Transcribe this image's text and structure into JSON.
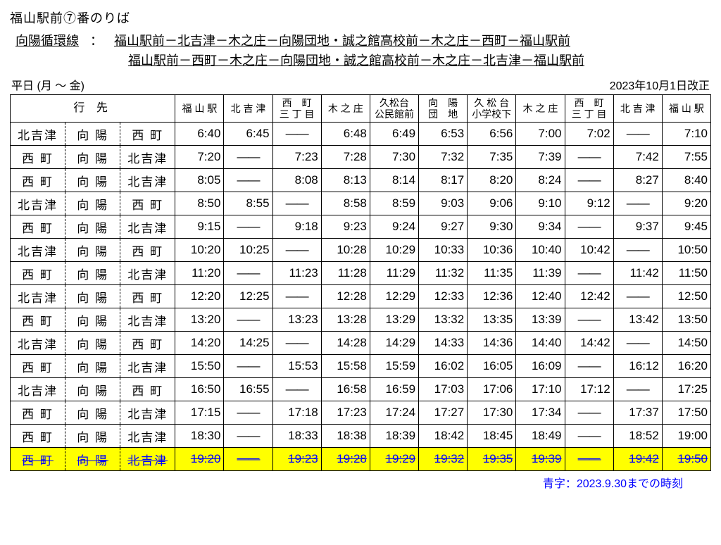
{
  "header": {
    "stop_title": "福山駅前⑦番のりば",
    "route_name": "向陽循環線",
    "sep": "：",
    "route_path_1": "福山駅前－北吉津－木之庄－向陽団地・誠之館高校前－木之庄－西町－福山駅前",
    "route_path_2": "福山駅前－西町－木之庄－向陽団地・誠之館高校前－木之庄－北吉津－福山駅前",
    "day_label": "平日 (月 ～ 金)",
    "revision": "2023年10月1日改正"
  },
  "columns": [
    "行 先",
    "福 山 駅",
    "北 吉 津",
    "西　町\n三 丁 目",
    "木 之 庄",
    "久松台\n公民館前",
    "向　陽\n団　地",
    "久 松 台\n小学校下",
    "木 之 庄",
    "西　町\n三 丁 目",
    "北 吉 津",
    "福 山 駅"
  ],
  "dash": "――",
  "rows": [
    {
      "dest": [
        "北吉津",
        "向 陽",
        "西 町"
      ],
      "c": [
        "6:40",
        "6:45",
        "",
        "6:48",
        "6:49",
        "6:53",
        "6:56",
        "7:00",
        "7:02",
        "",
        "7:10"
      ]
    },
    {
      "dest": [
        "西 町",
        "向 陽",
        "北吉津"
      ],
      "c": [
        "7:20",
        "",
        "7:23",
        "7:28",
        "7:30",
        "7:32",
        "7:35",
        "7:39",
        "",
        "7:42",
        "7:55"
      ]
    },
    {
      "dest": [
        "西 町",
        "向 陽",
        "北吉津"
      ],
      "c": [
        "8:05",
        "",
        "8:08",
        "8:13",
        "8:14",
        "8:17",
        "8:20",
        "8:24",
        "",
        "8:27",
        "8:40"
      ]
    },
    {
      "dest": [
        "北吉津",
        "向 陽",
        "西 町"
      ],
      "c": [
        "8:50",
        "8:55",
        "",
        "8:58",
        "8:59",
        "9:03",
        "9:06",
        "9:10",
        "9:12",
        "",
        "9:20"
      ]
    },
    {
      "dest": [
        "西 町",
        "向 陽",
        "北吉津"
      ],
      "c": [
        "9:15",
        "",
        "9:18",
        "9:23",
        "9:24",
        "9:27",
        "9:30",
        "9:34",
        "",
        "9:37",
        "9:45"
      ]
    },
    {
      "dest": [
        "北吉津",
        "向 陽",
        "西 町"
      ],
      "c": [
        "10:20",
        "10:25",
        "",
        "10:28",
        "10:29",
        "10:33",
        "10:36",
        "10:40",
        "10:42",
        "",
        "10:50"
      ]
    },
    {
      "dest": [
        "西 町",
        "向 陽",
        "北吉津"
      ],
      "c": [
        "11:20",
        "",
        "11:23",
        "11:28",
        "11:29",
        "11:32",
        "11:35",
        "11:39",
        "",
        "11:42",
        "11:50"
      ]
    },
    {
      "dest": [
        "北吉津",
        "向 陽",
        "西 町"
      ],
      "c": [
        "12:20",
        "12:25",
        "",
        "12:28",
        "12:29",
        "12:33",
        "12:36",
        "12:40",
        "12:42",
        "",
        "12:50"
      ]
    },
    {
      "dest": [
        "西 町",
        "向 陽",
        "北吉津"
      ],
      "c": [
        "13:20",
        "",
        "13:23",
        "13:28",
        "13:29",
        "13:32",
        "13:35",
        "13:39",
        "",
        "13:42",
        "13:50"
      ]
    },
    {
      "dest": [
        "北吉津",
        "向 陽",
        "西 町"
      ],
      "c": [
        "14:20",
        "14:25",
        "",
        "14:28",
        "14:29",
        "14:33",
        "14:36",
        "14:40",
        "14:42",
        "",
        "14:50"
      ]
    },
    {
      "dest": [
        "西 町",
        "向 陽",
        "北吉津"
      ],
      "c": [
        "15:50",
        "",
        "15:53",
        "15:58",
        "15:59",
        "16:02",
        "16:05",
        "16:09",
        "",
        "16:12",
        "16:20"
      ]
    },
    {
      "dest": [
        "北吉津",
        "向 陽",
        "西 町"
      ],
      "c": [
        "16:50",
        "16:55",
        "",
        "16:58",
        "16:59",
        "17:03",
        "17:06",
        "17:10",
        "17:12",
        "",
        "17:25"
      ]
    },
    {
      "dest": [
        "西 町",
        "向 陽",
        "北吉津"
      ],
      "c": [
        "17:15",
        "",
        "17:18",
        "17:23",
        "17:24",
        "17:27",
        "17:30",
        "17:34",
        "",
        "17:37",
        "17:50"
      ]
    },
    {
      "dest": [
        "西 町",
        "向 陽",
        "北吉津"
      ],
      "c": [
        "18:30",
        "",
        "18:33",
        "18:38",
        "18:39",
        "18:42",
        "18:45",
        "18:49",
        "",
        "18:52",
        "19:00"
      ]
    },
    {
      "dest": [
        "西 町",
        "向 陽",
        "北吉津"
      ],
      "hl": true,
      "strike": true,
      "c": [
        "19:20",
        "",
        "19:23",
        "19:28",
        "19:29",
        "19:32",
        "19:35",
        "19:39",
        "",
        "19:42",
        "19:50"
      ]
    }
  ],
  "footer": "青字：2023.9.30までの時刻",
  "style": {
    "highlight_color": "#ffff00",
    "strike_color": "#0000ff",
    "border_color": "#000000",
    "background": "#ffffff",
    "title_fontsize": 18,
    "cell_fontsize": 17,
    "header_fontsize": 14
  }
}
